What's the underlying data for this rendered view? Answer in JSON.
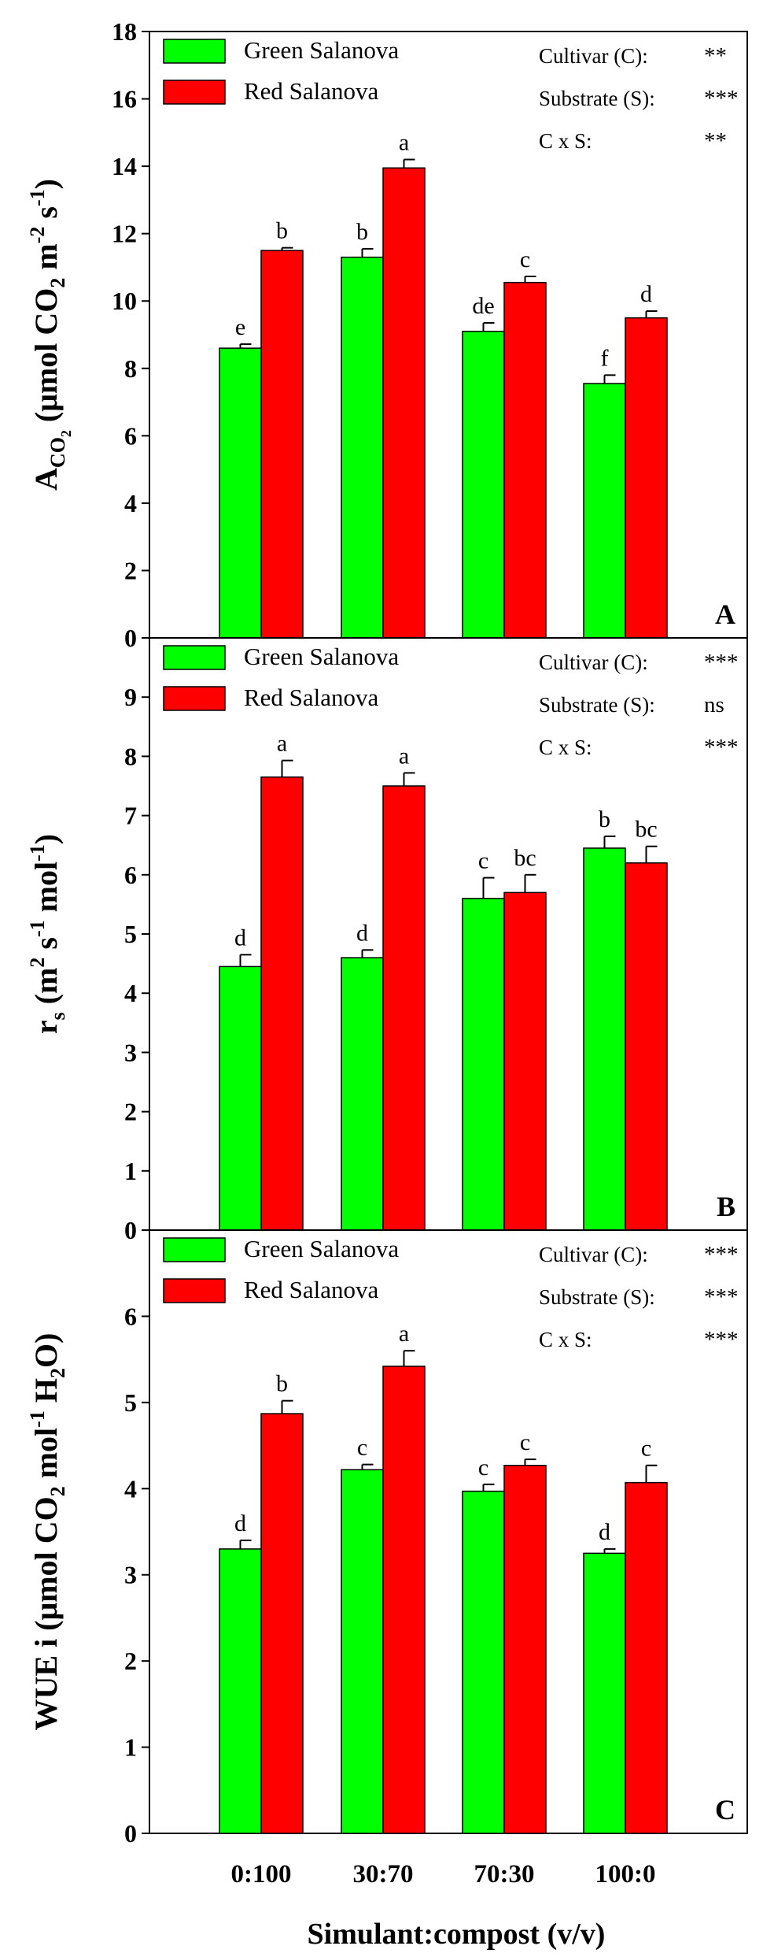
{
  "chart_data": [
    {
      "type": "bar",
      "panel": "A",
      "categories": [
        "0:100",
        "30:70",
        "70:30",
        "100:0"
      ],
      "ylabel": "A_CO2 (μmol CO2 m-2 s-1)",
      "ylabel_parts": {
        "main": "A",
        "sub": "CO",
        "subsub": "2",
        "paren_open": " (μmol CO",
        "paren_sub": "2",
        "unit_m": " m",
        "sup1": "-2",
        "unit_s": " s",
        "sup2": "-1",
        "close": ")"
      },
      "ylim": [
        0,
        18
      ],
      "yticks": [
        0,
        2,
        4,
        6,
        8,
        10,
        12,
        14,
        16,
        18
      ],
      "series": [
        {
          "name": "Green Salanova",
          "color": "#00ff00",
          "values": [
            8.6,
            11.3,
            9.1,
            7.55
          ],
          "errors": [
            0.12,
            0.25,
            0.25,
            0.25
          ],
          "letters": [
            "e",
            "b",
            "de",
            "f"
          ]
        },
        {
          "name": "Red Salanova",
          "color": "#ff0000",
          "values": [
            11.5,
            13.95,
            10.55,
            9.5
          ],
          "errors": [
            0.08,
            0.25,
            0.18,
            0.2
          ],
          "letters": [
            "b",
            "a",
            "c",
            "d"
          ]
        }
      ],
      "stats": [
        {
          "label": "Cultivar (C):",
          "sig": "**"
        },
        {
          "label": "Substrate (S):",
          "sig": "***"
        },
        {
          "label": "C x S:",
          "sig": "**"
        }
      ]
    },
    {
      "type": "bar",
      "panel": "B",
      "categories": [
        "0:100",
        "30:70",
        "70:30",
        "100:0"
      ],
      "ylabel": "rs (m2 s-1 mol-1)",
      "ylabel_parts": {
        "main": "r",
        "sub": "s",
        "open": " (m",
        "sup1": "2",
        "mid": " s",
        "sup2": "-1",
        "mol": " mol",
        "sup3": "-1",
        "close": ")"
      },
      "ylim": [
        0,
        10
      ],
      "yticks": [
        0,
        1,
        2,
        3,
        4,
        5,
        6,
        7,
        8,
        9
      ],
      "series": [
        {
          "name": "Green Salanova",
          "color": "#00ff00",
          "values": [
            4.45,
            4.6,
            5.6,
            6.45
          ],
          "errors": [
            0.2,
            0.13,
            0.35,
            0.2
          ],
          "letters": [
            "d",
            "d",
            "c",
            "b"
          ]
        },
        {
          "name": "Red Salanova",
          "color": "#ff0000",
          "values": [
            7.65,
            7.5,
            5.7,
            6.2
          ],
          "errors": [
            0.28,
            0.22,
            0.3,
            0.28
          ],
          "letters": [
            "a",
            "a",
            "bc",
            "bc"
          ]
        }
      ],
      "stats": [
        {
          "label": "Cultivar (C):",
          "sig": "***"
        },
        {
          "label": "Substrate (S):",
          "sig": "ns"
        },
        {
          "label": "C x S:",
          "sig": "***"
        }
      ]
    },
    {
      "type": "bar",
      "panel": "C",
      "categories": [
        "0:100",
        "30:70",
        "70:30",
        "100:0"
      ],
      "ylabel": "WUE i (μmol CO2 mol-1 H2O)",
      "ylabel_parts": {
        "main": "WUE i (μmol CO",
        "sub1": "2",
        "mol": " mol",
        "sup1": "-1",
        "h": " H",
        "sub2": "2",
        "close": "O)"
      },
      "ylim": [
        0,
        7
      ],
      "yticks": [
        0,
        1,
        2,
        3,
        4,
        5,
        6
      ],
      "xlabel": "Simulant:compost (v/v)",
      "series": [
        {
          "name": "Green Salanova",
          "color": "#00ff00",
          "values": [
            3.3,
            4.22,
            3.97,
            3.25
          ],
          "errors": [
            0.1,
            0.06,
            0.08,
            0.05
          ],
          "letters": [
            "d",
            "c",
            "c",
            "d"
          ]
        },
        {
          "name": "Red Salanova",
          "color": "#ff0000",
          "values": [
            4.87,
            5.42,
            4.27,
            4.07
          ],
          "errors": [
            0.15,
            0.18,
            0.07,
            0.2
          ],
          "letters": [
            "b",
            "a",
            "c",
            "c"
          ]
        }
      ],
      "stats": [
        {
          "label": "Cultivar (C):",
          "sig": "***"
        },
        {
          "label": "Substrate (S):",
          "sig": "***"
        },
        {
          "label": "C x S:",
          "sig": "***"
        }
      ]
    }
  ]
}
